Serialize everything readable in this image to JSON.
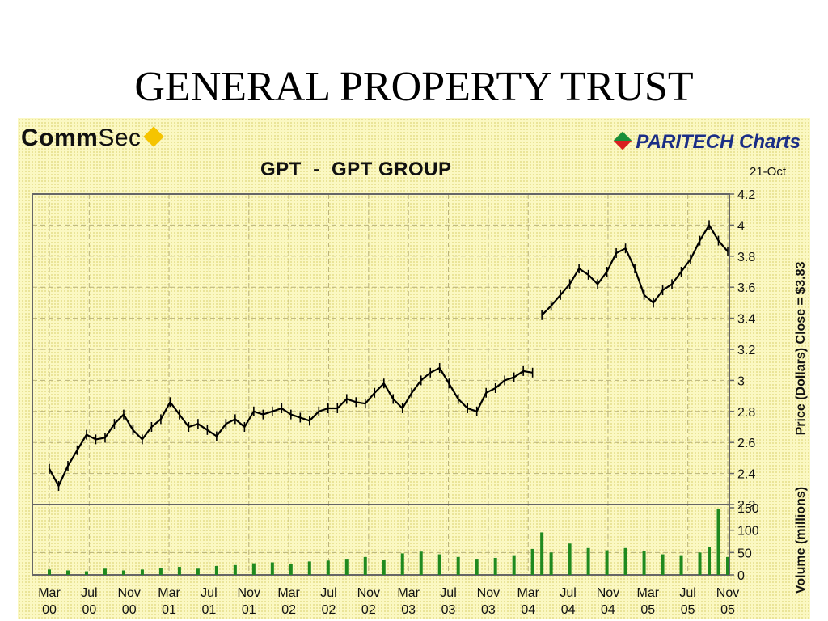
{
  "slide_title": "GENERAL PROPERTY TRUST",
  "logos": {
    "commsec_bold": "Comm",
    "commsec_rest": "Sec",
    "paritech": "PARITECH Charts",
    "commsec_icon": "yellow-diamond-icon",
    "paritech_icon": "red-green-diamond-icon"
  },
  "chart_data": {
    "type": "line",
    "title": "GPT  -  GPT GROUP",
    "date_label": "21-Oct",
    "price_axis_label": "Price (Dollars)  Close = $3.83",
    "volume_axis_label": "Volume (millions)",
    "price_ylim": [
      2.2,
      4.2
    ],
    "price_ticks": [
      "4.2",
      "4",
      "3.8",
      "3.6",
      "3.4",
      "3.2",
      "3",
      "2.8",
      "2.6",
      "2.4",
      "2.2"
    ],
    "volume_ylim": [
      0,
      150
    ],
    "volume_ticks": [
      "150",
      "100",
      "50",
      "0"
    ],
    "x_ticks": [
      [
        "Mar",
        "00"
      ],
      [
        "Jul",
        "00"
      ],
      [
        "Nov",
        "00"
      ],
      [
        "Mar",
        "01"
      ],
      [
        "Jul",
        "01"
      ],
      [
        "Nov",
        "01"
      ],
      [
        "Mar",
        "02"
      ],
      [
        "Jul",
        "02"
      ],
      [
        "Nov",
        "02"
      ],
      [
        "Mar",
        "03"
      ],
      [
        "Jul",
        "03"
      ],
      [
        "Nov",
        "03"
      ],
      [
        "Mar",
        "04"
      ],
      [
        "Jul",
        "04"
      ],
      [
        "Nov",
        "04"
      ],
      [
        "Mar",
        "05"
      ],
      [
        "Jul",
        "05"
      ],
      [
        "Nov",
        "05"
      ]
    ],
    "grid": true,
    "series": [
      {
        "values": [
          [
            0,
            2.43
          ],
          [
            1,
            2.32
          ],
          [
            2,
            2.45
          ],
          [
            3,
            2.55
          ],
          [
            4,
            2.65
          ],
          [
            5,
            2.62
          ],
          [
            6,
            2.63
          ],
          [
            7,
            2.72
          ],
          [
            8,
            2.78
          ],
          [
            9,
            2.68
          ],
          [
            10,
            2.62
          ],
          [
            11,
            2.7
          ],
          [
            12,
            2.75
          ],
          [
            13,
            2.86
          ],
          [
            14,
            2.78
          ],
          [
            15,
            2.7
          ],
          [
            16,
            2.72
          ],
          [
            17,
            2.68
          ],
          [
            18,
            2.64
          ],
          [
            19,
            2.72
          ],
          [
            20,
            2.75
          ],
          [
            21,
            2.7
          ],
          [
            22,
            2.8
          ],
          [
            23,
            2.78
          ],
          [
            24,
            2.8
          ],
          [
            25,
            2.82
          ],
          [
            26,
            2.78
          ],
          [
            27,
            2.76
          ],
          [
            28,
            2.74
          ],
          [
            29,
            2.8
          ],
          [
            30,
            2.82
          ],
          [
            31,
            2.82
          ],
          [
            32,
            2.88
          ],
          [
            33,
            2.86
          ],
          [
            34,
            2.85
          ],
          [
            35,
            2.92
          ],
          [
            36,
            2.98
          ],
          [
            37,
            2.88
          ],
          [
            38,
            2.82
          ],
          [
            39,
            2.92
          ],
          [
            40,
            3.0
          ],
          [
            41,
            3.05
          ],
          [
            42,
            3.08
          ],
          [
            43,
            2.98
          ],
          [
            44,
            2.88
          ],
          [
            45,
            2.82
          ],
          [
            46,
            2.8
          ],
          [
            47,
            2.92
          ],
          [
            48,
            2.95
          ],
          [
            49,
            3.0
          ],
          [
            50,
            3.02
          ],
          [
            51,
            3.06
          ],
          [
            52,
            3.05
          ],
          [
            53,
            3.42
          ],
          [
            54,
            3.48
          ],
          [
            55,
            3.55
          ],
          [
            56,
            3.62
          ],
          [
            57,
            3.72
          ],
          [
            58,
            3.68
          ],
          [
            59,
            3.62
          ],
          [
            60,
            3.7
          ],
          [
            61,
            3.82
          ],
          [
            62,
            3.85
          ],
          [
            63,
            3.72
          ],
          [
            64,
            3.55
          ],
          [
            65,
            3.5
          ],
          [
            66,
            3.58
          ],
          [
            67,
            3.62
          ],
          [
            68,
            3.7
          ],
          [
            69,
            3.78
          ],
          [
            70,
            3.9
          ],
          [
            71,
            4.0
          ],
          [
            72,
            3.9
          ],
          [
            73,
            3.83
          ]
        ]
      },
      {
        "name": "Volume",
        "values": [
          [
            0,
            12
          ],
          [
            2,
            10
          ],
          [
            4,
            8
          ],
          [
            6,
            14
          ],
          [
            8,
            10
          ],
          [
            10,
            12
          ],
          [
            12,
            16
          ],
          [
            14,
            18
          ],
          [
            16,
            14
          ],
          [
            18,
            20
          ],
          [
            20,
            22
          ],
          [
            22,
            26
          ],
          [
            24,
            28
          ],
          [
            26,
            24
          ],
          [
            28,
            30
          ],
          [
            30,
            32
          ],
          [
            32,
            36
          ],
          [
            34,
            40
          ],
          [
            36,
            34
          ],
          [
            38,
            48
          ],
          [
            40,
            52
          ],
          [
            42,
            46
          ],
          [
            44,
            40
          ],
          [
            46,
            36
          ],
          [
            48,
            38
          ],
          [
            50,
            44
          ],
          [
            52,
            58
          ],
          [
            53,
            95
          ],
          [
            54,
            50
          ],
          [
            56,
            70
          ],
          [
            58,
            60
          ],
          [
            60,
            55
          ],
          [
            62,
            60
          ],
          [
            64,
            54
          ],
          [
            66,
            46
          ],
          [
            68,
            44
          ],
          [
            70,
            50
          ],
          [
            71,
            62
          ],
          [
            72,
            148
          ],
          [
            73,
            40
          ]
        ]
      }
    ]
  }
}
